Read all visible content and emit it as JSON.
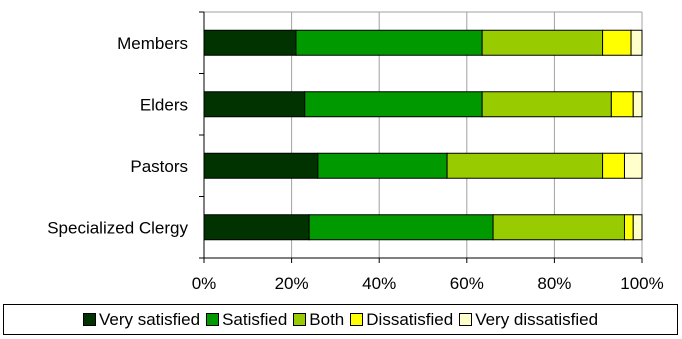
{
  "chart_data": {
    "type": "bar",
    "orientation": "horizontal",
    "stacked": "percent",
    "categories": [
      "Members",
      "Elders",
      "Pastors",
      "Specialized Clergy"
    ],
    "series": [
      {
        "name": "Very satisfied",
        "color": "#003300",
        "values": [
          21,
          23,
          26,
          24
        ]
      },
      {
        "name": "Satisfied",
        "color": "#009900",
        "values": [
          42.5,
          40.5,
          29.5,
          42
        ]
      },
      {
        "name": "Both",
        "color": "#99CC00",
        "values": [
          27.5,
          29.5,
          35.5,
          30
        ]
      },
      {
        "name": "Dissatisfied",
        "color": "#FFFF00",
        "values": [
          6.5,
          5,
          5,
          2
        ]
      },
      {
        "name": "Very dissatisfied",
        "color": "#FFFFCC",
        "values": [
          2.5,
          2,
          4,
          2
        ]
      }
    ],
    "xlim": [
      0,
      100
    ],
    "xticks": [
      "0%",
      "20%",
      "40%",
      "60%",
      "80%",
      "100%"
    ],
    "grid": "vertical",
    "legend_position": "bottom"
  }
}
